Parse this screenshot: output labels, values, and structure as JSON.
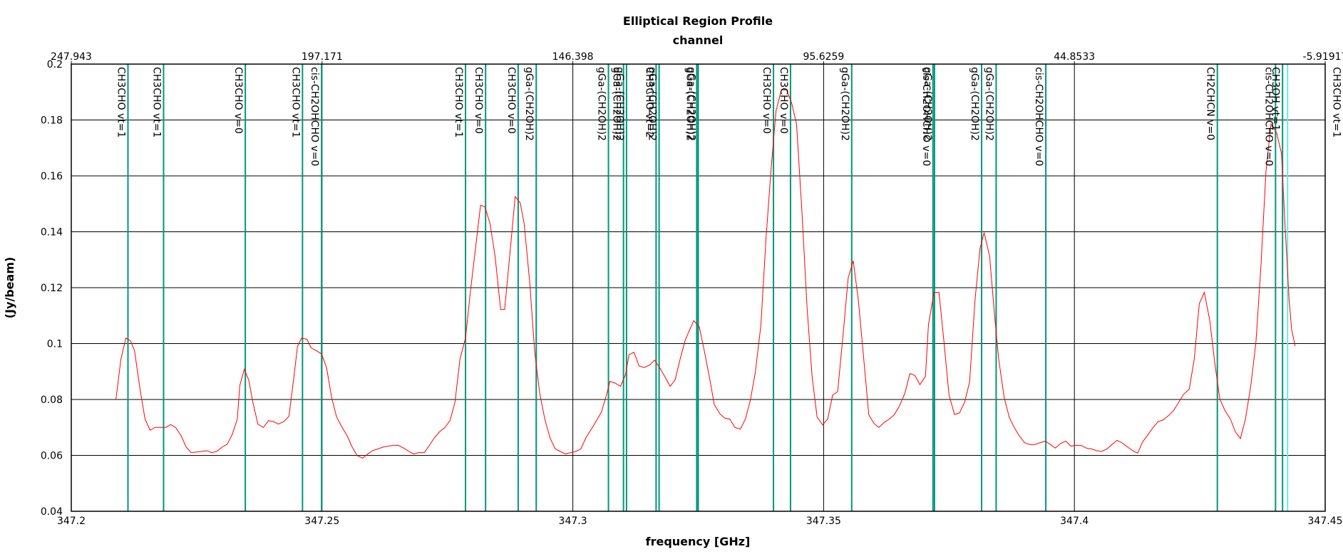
{
  "chart_data": {
    "type": "line",
    "title": "Elliptical Region Profile",
    "x2_label": "channel",
    "xlabel": "frequency [GHz]",
    "ylabel": "(Jy/beam)",
    "xlim": [
      347.2,
      347.45
    ],
    "xticks": [
      347.2,
      347.25,
      347.3,
      347.35,
      347.4,
      347.45
    ],
    "x2lim": [
      247.943,
      -5.91917
    ],
    "x2ticks": [
      247.943,
      197.171,
      146.398,
      95.6259,
      44.8533,
      -5.91917
    ],
    "ylim": [
      0.04,
      0.2
    ],
    "yticks": [
      0.04,
      0.06,
      0.08,
      0.1,
      0.12,
      0.14,
      0.16,
      0.18,
      0.2
    ],
    "grid": true,
    "color": "#ff0000",
    "x": [
      347.2089,
      347.2099,
      347.2109,
      347.2118,
      347.2126,
      347.2137,
      347.2147,
      347.2157,
      347.2167,
      347.2188,
      347.2198,
      347.2208,
      347.2219,
      347.2229,
      347.2239,
      347.226,
      347.227,
      347.228,
      347.229,
      347.2301,
      347.2311,
      347.2321,
      347.2331,
      347.2336,
      347.2345,
      347.2354,
      347.2362,
      347.2372,
      347.2383,
      347.2393,
      347.2403,
      347.2413,
      347.2424,
      347.2434,
      347.2444,
      347.2451,
      347.2459,
      347.247,
      347.2478,
      347.2488,
      347.2499,
      347.2509,
      347.2519,
      347.2529,
      347.254,
      347.255,
      347.256,
      347.257,
      347.2581,
      347.2591,
      347.2601,
      347.2611,
      347.2622,
      347.2632,
      347.2642,
      347.2652,
      347.2663,
      347.2673,
      347.2683,
      347.2693,
      347.2704,
      347.2714,
      347.2724,
      347.2734,
      347.2745,
      347.2755,
      347.2765,
      347.2775,
      347.2786,
      347.2796,
      347.2806,
      347.2816,
      347.2825,
      347.2835,
      347.2845,
      347.2856,
      347.2864,
      347.2874,
      347.2885,
      347.2895,
      347.2903,
      347.2914,
      347.2924,
      347.2934,
      347.2944,
      347.2955,
      347.2965,
      347.2975,
      347.2985,
      347.2996,
      347.3006,
      347.3016,
      347.3026,
      347.3037,
      347.3047,
      347.3057,
      347.3067,
      347.3074,
      347.3084,
      347.3095,
      347.3105,
      347.3112,
      347.3122,
      347.3132,
      347.3142,
      347.3153,
      347.3163,
      347.3173,
      347.3183,
      347.3194,
      347.3204,
      347.3214,
      347.3224,
      347.3235,
      347.3241,
      347.3252,
      347.3262,
      347.3272,
      347.3282,
      347.3293,
      347.3303,
      347.3313,
      347.3323,
      347.3334,
      347.3344,
      347.3354,
      347.3364,
      347.3375,
      347.3385,
      347.3395,
      347.3405,
      347.3416,
      347.3426,
      347.3436,
      347.3446,
      347.3457,
      347.3467,
      347.3477,
      347.3487,
      347.3498,
      347.3508,
      347.3518,
      347.3528,
      347.3539,
      347.3549,
      347.3559,
      347.3569,
      347.358,
      347.359,
      347.36,
      347.361,
      347.3621,
      347.3631,
      347.3641,
      347.3651,
      347.3662,
      347.3672,
      347.3682,
      347.3692,
      347.3703,
      347.3709,
      347.372,
      347.373,
      347.374,
      347.375,
      347.3761,
      347.3771,
      347.3781,
      347.3791,
      347.3802,
      347.3812,
      347.382,
      347.3831,
      347.3841,
      347.3849,
      347.386,
      347.387,
      347.388,
      347.389,
      347.3901,
      347.3911,
      347.3921,
      347.3931,
      347.3942,
      347.3952,
      347.3962,
      347.3972,
      347.3983,
      347.3993,
      347.4003,
      347.4013,
      347.4024,
      347.4034,
      347.4044,
      347.4054,
      347.4065,
      347.4075,
      347.4085,
      347.4095,
      347.4106,
      347.4116,
      347.4126,
      347.4136,
      347.4147,
      347.4157,
      347.4167,
      347.4177,
      347.4188,
      347.4198,
      347.4208,
      347.4218,
      347.4229,
      347.4239,
      347.4249,
      347.4259,
      347.427,
      347.428,
      347.429,
      347.43,
      347.4311,
      347.4321,
      347.4331,
      347.4341,
      347.4352,
      347.4362,
      347.4372,
      347.4382,
      347.4392,
      347.4403,
      347.4413,
      347.442,
      347.4423,
      347.4428,
      347.4433,
      347.444
    ],
    "values": [
      0.08,
      0.0945,
      0.102,
      0.101,
      0.0975,
      0.0838,
      0.073,
      0.069,
      0.07,
      0.07,
      0.071,
      0.07,
      0.067,
      0.063,
      0.061,
      0.0614,
      0.0617,
      0.061,
      0.0614,
      0.063,
      0.064,
      0.0675,
      0.073,
      0.085,
      0.0908,
      0.0868,
      0.079,
      0.0712,
      0.07,
      0.0724,
      0.0721,
      0.0712,
      0.0721,
      0.074,
      0.0883,
      0.099,
      0.102,
      0.1015,
      0.0985,
      0.0975,
      0.0963,
      0.0914,
      0.0807,
      0.0737,
      0.07,
      0.067,
      0.063,
      0.0599,
      0.059,
      0.0605,
      0.0617,
      0.0623,
      0.063,
      0.0633,
      0.0636,
      0.0636,
      0.0626,
      0.0614,
      0.0605,
      0.061,
      0.061,
      0.0636,
      0.0663,
      0.0684,
      0.07,
      0.0724,
      0.079,
      0.0945,
      0.102,
      0.119,
      0.1342,
      0.1495,
      0.1489,
      0.1428,
      0.1312,
      0.1122,
      0.1122,
      0.1312,
      0.1526,
      0.1504,
      0.1428,
      0.122,
      0.0969,
      0.0822,
      0.073,
      0.066,
      0.0623,
      0.0614,
      0.0605,
      0.061,
      0.0614,
      0.0623,
      0.0663,
      0.0694,
      0.0724,
      0.0755,
      0.0816,
      0.0865,
      0.0859,
      0.0847,
      0.0889,
      0.096,
      0.0969,
      0.092,
      0.0914,
      0.0923,
      0.0941,
      0.0914,
      0.0883,
      0.0847,
      0.0871,
      0.0945,
      0.1012,
      0.1058,
      0.1082,
      0.1061,
      0.0975,
      0.0883,
      0.0782,
      0.0749,
      0.0733,
      0.073,
      0.07,
      0.0694,
      0.073,
      0.0798,
      0.0899,
      0.1067,
      0.1373,
      0.1618,
      0.1832,
      0.1908,
      0.1908,
      0.1862,
      0.1786,
      0.1465,
      0.1128,
      0.0883,
      0.0737,
      0.0709,
      0.073,
      0.0816,
      0.0828,
      0.1036,
      0.1235,
      0.1296,
      0.1159,
      0.0945,
      0.0746,
      0.0715,
      0.07,
      0.0718,
      0.073,
      0.0746,
      0.0776,
      0.0822,
      0.0893,
      0.0886,
      0.0853,
      0.0883,
      0.1067,
      0.1183,
      0.1183,
      0.1006,
      0.0816,
      0.0746,
      0.0752,
      0.079,
      0.0862,
      0.1159,
      0.1342,
      0.1397,
      0.1312,
      0.1098,
      0.0945,
      0.0807,
      0.0737,
      0.07,
      0.067,
      0.0645,
      0.0639,
      0.0639,
      0.0645,
      0.0651,
      0.0639,
      0.0626,
      0.0642,
      0.0651,
      0.0633,
      0.0636,
      0.0636,
      0.0626,
      0.0623,
      0.0617,
      0.0614,
      0.0623,
      0.0639,
      0.0654,
      0.0645,
      0.063,
      0.0617,
      0.0608,
      0.0648,
      0.0675,
      0.07,
      0.0721,
      0.0727,
      0.0743,
      0.0761,
      0.079,
      0.0819,
      0.0837,
      0.0945,
      0.1143,
      0.1183,
      0.1082,
      0.0929,
      0.0801,
      0.0761,
      0.073,
      0.0684,
      0.066,
      0.073,
      0.0853,
      0.1006,
      0.1281,
      0.1618,
      0.1786,
      0.1755,
      0.1679,
      0.1419,
      0.1327,
      0.1159,
      0.1052,
      0.0991
    ],
    "lines_color": "#00977a",
    "lines": [
      {
        "x": 347.2113,
        "label": "CH3CHO vt=1"
      },
      {
        "x": 347.2184,
        "label": "CH3CHO vt=1"
      },
      {
        "x": 347.2347,
        "label": "CH3CHO v=0"
      },
      {
        "x": 347.2461,
        "label": "CH3CHO vt=1"
      },
      {
        "x": 347.2499,
        "label": "cis-CH2OHCHO v=0"
      },
      {
        "x": 347.2786,
        "label": "CH3CHO vt=1"
      },
      {
        "x": 347.2826,
        "label": "CH3CHO v=0"
      },
      {
        "x": 347.2891,
        "label": "CH3CHO v=0"
      },
      {
        "x": 347.2927,
        "label": "gGa-(CH2OH)2"
      },
      {
        "x": 347.3071,
        "label": "gGa-(CH2OH)2"
      },
      {
        "x": 347.3101,
        "label": "gGa-(CH2OH)2"
      },
      {
        "x": 347.3107,
        "label": "gGa-(CH2OH)2"
      },
      {
        "x": 347.3166,
        "label": "CH3CHO vt=2"
      },
      {
        "x": 347.3172,
        "label": "gGa-(CH2OH)2"
      },
      {
        "x": 347.3247,
        "label": "gGa-(CH2OH)2"
      },
      {
        "x": 347.325,
        "label": "gGa-(CH2OH)2"
      },
      {
        "x": 347.34,
        "label": "CH3CHO v=0"
      },
      {
        "x": 347.3434,
        "label": "CH3CHO v=0"
      },
      {
        "x": 347.3556,
        "label": "gGa-(CH2OH)2"
      },
      {
        "x": 347.3718,
        "label": "cis-CH2OHCHO v=0"
      },
      {
        "x": 347.3721,
        "label": "gGa-(CH2OH)2"
      },
      {
        "x": 347.3815,
        "label": "gGa-(CH2OH)2"
      },
      {
        "x": 347.3844,
        "label": "gGa-(CH2OH)2"
      },
      {
        "x": 347.3943,
        "label": "cis-CH2OHCHO v=0"
      },
      {
        "x": 347.4285,
        "label": "CH2CHCN v=0"
      },
      {
        "x": 347.4401,
        "label": "cis-CH2OHCHO v=0"
      },
      {
        "x": 347.4415,
        "label": "CH3OH vt=1"
      },
      {
        "x": 347.4536,
        "label": "CH3CHO vt=1"
      }
    ],
    "highlight": {
      "x": 347.4425,
      "color": "#66e8e8"
    }
  }
}
